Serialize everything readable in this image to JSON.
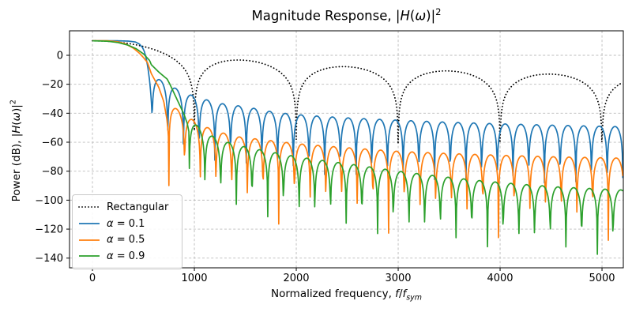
{
  "chart_data": {
    "type": "line",
    "title": "Magnitude Response, |H(ω)|²",
    "xlabel": "Normalized frequency, f/f_sym",
    "ylabel": "Power (dB), |H(ω)|²",
    "xlim": [
      -225,
      5209
    ],
    "ylim": [
      -146.7,
      16.9
    ],
    "xticks": [
      0,
      1000,
      2000,
      3000,
      4000,
      5000
    ],
    "yticks": [
      0,
      -20,
      -40,
      -60,
      -80,
      -100,
      -120,
      -140
    ],
    "grid": {
      "color": "#bcbcbc",
      "dash": [
        3,
        2.6
      ]
    },
    "legend_position": "lower left",
    "peak_db": 10,
    "floor_db": -146,
    "sampling": {
      "f_start": 0,
      "f_end": 5209,
      "step": 4.9,
      "offset": 0.37
    },
    "series": [
      {
        "name": "Rectangular",
        "color": "#000000",
        "line": "dotted",
        "model": {
          "type": "sinc2",
          "peak_db": 10,
          "null_spacing": 1000,
          "min_term_db": -52
        },
        "notes": "sinc^2 spectrum: nulls at 1000,2000,3000,4000,5000; sidelobe peaks ≈ -3.5,-7.9,-10.8,-13.1 dB"
      },
      {
        "name": "α = 0.1",
        "color": "#1f77b4",
        "line": "solid",
        "model": {
          "type": "truncated_raised_cosine",
          "alpha": 0.1,
          "f_sym": 1000,
          "rolloff_anchors": [
            [
              0,
              10
            ],
            [
              250,
              10
            ],
            [
              350,
              9.8
            ],
            [
              420,
              9.2
            ],
            [
              460,
              7.8
            ],
            [
              490,
              5.5
            ],
            [
              510,
              2.5
            ],
            [
              530,
              -3
            ],
            [
              545,
              -9
            ],
            [
              560,
              -17
            ],
            [
              572,
              -26
            ],
            [
              580,
              -34
            ],
            [
              585,
              -42
            ]
          ],
          "lobe_start": 585,
          "lobe_spacing": 154,
          "min_term_db": -40,
          "envelope_db": [
            [
              585,
              -14
            ],
            [
              740,
              -20
            ],
            [
              900,
              -26
            ],
            [
              1060,
              -29.5
            ],
            [
              1230,
              -33
            ],
            [
              1500,
              -35.5
            ],
            [
              1800,
              -39.5
            ],
            [
              2100,
              -41.5
            ],
            [
              2500,
              -43.2
            ],
            [
              3000,
              -44.8
            ],
            [
              3500,
              -46.2
            ],
            [
              4000,
              -47.3
            ],
            [
              4500,
              -48.2
            ],
            [
              5209,
              -49.3
            ]
          ]
        }
      },
      {
        "name": "α = 0.5",
        "color": "#ff7f0e",
        "line": "solid",
        "model": {
          "type": "truncated_raised_cosine",
          "alpha": 0.5,
          "f_sym": 1000,
          "rolloff_anchors": [
            [
              0,
              10
            ],
            [
              150,
              10
            ],
            [
              250,
              9.3
            ],
            [
              320,
              8
            ],
            [
              400,
              5
            ],
            [
              460,
              1.5
            ],
            [
              500,
              -1.5
            ],
            [
              540,
              -5
            ],
            [
              578,
              -12.7
            ],
            [
              650,
              -22
            ],
            [
              700,
              -32
            ],
            [
              730,
              -44
            ],
            [
              742,
              -52
            ],
            [
              750,
              -62
            ]
          ],
          "lobe_start": 750,
          "lobe_spacing": 154,
          "min_term_db": -57,
          "envelope_db": [
            [
              750,
              -33
            ],
            [
              900,
              -41
            ],
            [
              1050,
              -47.5
            ],
            [
              1200,
              -52
            ],
            [
              1400,
              -56
            ],
            [
              1700,
              -58.5
            ],
            [
              2000,
              -61
            ],
            [
              2500,
              -63.8
            ],
            [
              3000,
              -66.3
            ],
            [
              3500,
              -67.8
            ],
            [
              4000,
              -69
            ],
            [
              4500,
              -70
            ],
            [
              5209,
              -71
            ]
          ]
        }
      },
      {
        "name": "α = 0.9",
        "color": "#2ca02c",
        "line": "solid",
        "model": {
          "type": "truncated_raised_cosine",
          "alpha": 0.9,
          "f_sym": 1000,
          "rolloff_anchors": [
            [
              0,
              10
            ],
            [
              150,
              9.7
            ],
            [
              250,
              8.8
            ],
            [
              350,
              7
            ],
            [
              430,
              4.5
            ],
            [
              500,
              1
            ],
            [
              560,
              -3.5
            ],
            [
              578,
              -6.5
            ],
            [
              650,
              -11.5
            ],
            [
              700,
              -14.5
            ],
            [
              733,
              -16.4
            ],
            [
              760,
              -20
            ],
            [
              800,
              -26
            ],
            [
              850,
              -33.5
            ],
            [
              900,
              -41
            ],
            [
              930,
              -47
            ],
            [
              950,
              -54
            ]
          ],
          "lobe_start": 950,
          "lobe_spacing": 154,
          "min_term_db": -52,
          "envelope_db": [
            [
              950,
              -44
            ],
            [
              1100,
              -53
            ],
            [
              1250,
              -58.5
            ],
            [
              1450,
              -62.5
            ],
            [
              1700,
              -66
            ],
            [
              2000,
              -70
            ],
            [
              2300,
              -73
            ],
            [
              2600,
              -75.8
            ],
            [
              3000,
              -80
            ],
            [
              3400,
              -83.5
            ],
            [
              3800,
              -86.5
            ],
            [
              4200,
              -89
            ],
            [
              4600,
              -91
            ],
            [
              5209,
              -93
            ]
          ]
        }
      }
    ]
  },
  "labels": {
    "title_segments": [
      {
        "t": "Magnitude Response, |"
      },
      {
        "t": "H",
        "i": 1
      },
      {
        "t": "("
      },
      {
        "t": "ω",
        "i": 1
      },
      {
        "t": ")|"
      },
      {
        "t": "2",
        "sup": 1
      }
    ],
    "xlabel_segments": [
      {
        "t": "Normalized frequency, "
      },
      {
        "t": "f",
        "i": 1
      },
      {
        "t": "/"
      },
      {
        "t": "f",
        "i": 1
      },
      {
        "t": "sym",
        "i": 1,
        "sub": 1
      }
    ],
    "ylabel_segments": [
      {
        "t": "Power (dB), |"
      },
      {
        "t": "H",
        "i": 1
      },
      {
        "t": "("
      },
      {
        "t": "ω",
        "i": 1
      },
      {
        "t": ")|"
      },
      {
        "t": "2",
        "sup": 1
      }
    ]
  },
  "legend": {
    "entries": [
      {
        "label": "Rectangular",
        "segments": [
          {
            "t": "Rectangular"
          }
        ],
        "color": "#000000",
        "style": "dotted"
      },
      {
        "label": "α = 0.1",
        "segments": [
          {
            "t": "α",
            "i": 1
          },
          {
            "t": " = 0.1"
          }
        ],
        "color": "#1f77b4",
        "style": "solid"
      },
      {
        "label": "α = 0.5",
        "segments": [
          {
            "t": "α",
            "i": 1
          },
          {
            "t": " = 0.5"
          }
        ],
        "color": "#ff7f0e",
        "style": "solid"
      },
      {
        "label": "α = 0.9",
        "segments": [
          {
            "t": "α",
            "i": 1
          },
          {
            "t": " = 0.9"
          }
        ],
        "color": "#2ca02c",
        "style": "solid"
      }
    ]
  },
  "ticks": {
    "x_labels": [
      "0",
      "1000",
      "2000",
      "3000",
      "4000",
      "5000"
    ],
    "y_labels": [
      "0",
      "−20",
      "−40",
      "−60",
      "−80",
      "−100",
      "−120",
      "−140"
    ]
  }
}
